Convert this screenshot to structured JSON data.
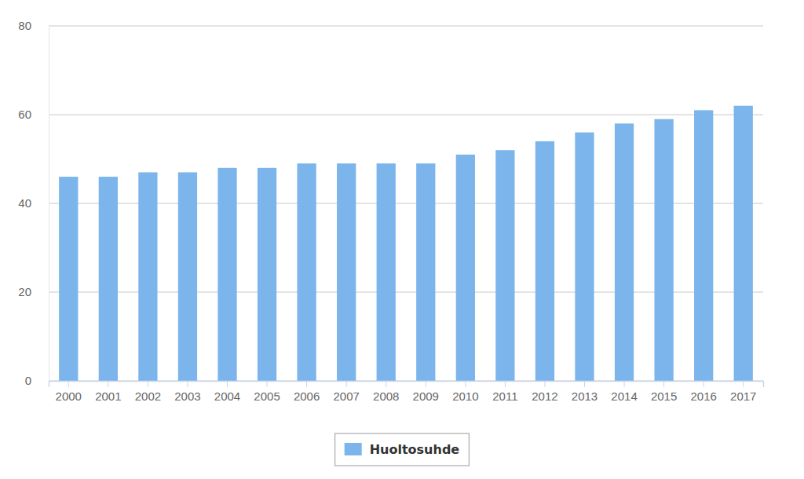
{
  "chart_data": {
    "type": "bar",
    "categories": [
      "2000",
      "2001",
      "2002",
      "2003",
      "2004",
      "2005",
      "2006",
      "2007",
      "2008",
      "2009",
      "2010",
      "2011",
      "2012",
      "2013",
      "2014",
      "2015",
      "2016",
      "2017"
    ],
    "series": [
      {
        "name": "Huoltosuhde",
        "color": "#7cb5ec",
        "values": [
          46,
          46,
          47,
          47,
          48,
          48,
          49,
          49,
          49,
          49,
          51,
          52,
          54,
          56,
          58,
          59,
          61,
          62
        ]
      }
    ],
    "ylim": [
      0,
      80
    ],
    "yticks": [
      0,
      20,
      40,
      60,
      80
    ],
    "grid": true,
    "legend": "bottom"
  }
}
